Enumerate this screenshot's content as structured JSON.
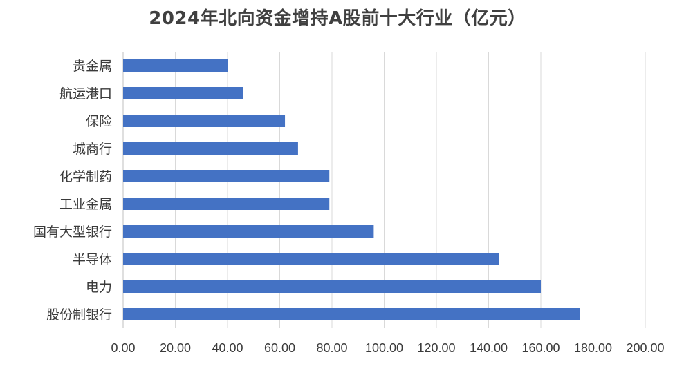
{
  "chart_data": {
    "type": "bar",
    "orientation": "horizontal",
    "title": "2024年北向资金增持A股前十大行业（亿元）",
    "categories": [
      "贵金属",
      "航运港口",
      "保险",
      "城商行",
      "化学制药",
      "工业金属",
      "国有大型银行",
      "半导体",
      "电力",
      "股份制银行"
    ],
    "values": [
      40,
      46,
      62,
      67,
      79,
      79,
      96,
      144,
      160,
      175
    ],
    "xlim": [
      0,
      200
    ],
    "xticks": [
      "0.00",
      "20.00",
      "40.00",
      "60.00",
      "80.00",
      "100.00",
      "120.00",
      "140.00",
      "160.00",
      "180.00",
      "200.00"
    ],
    "grid": true,
    "legend": "none",
    "bar_color": "#4472C4"
  }
}
